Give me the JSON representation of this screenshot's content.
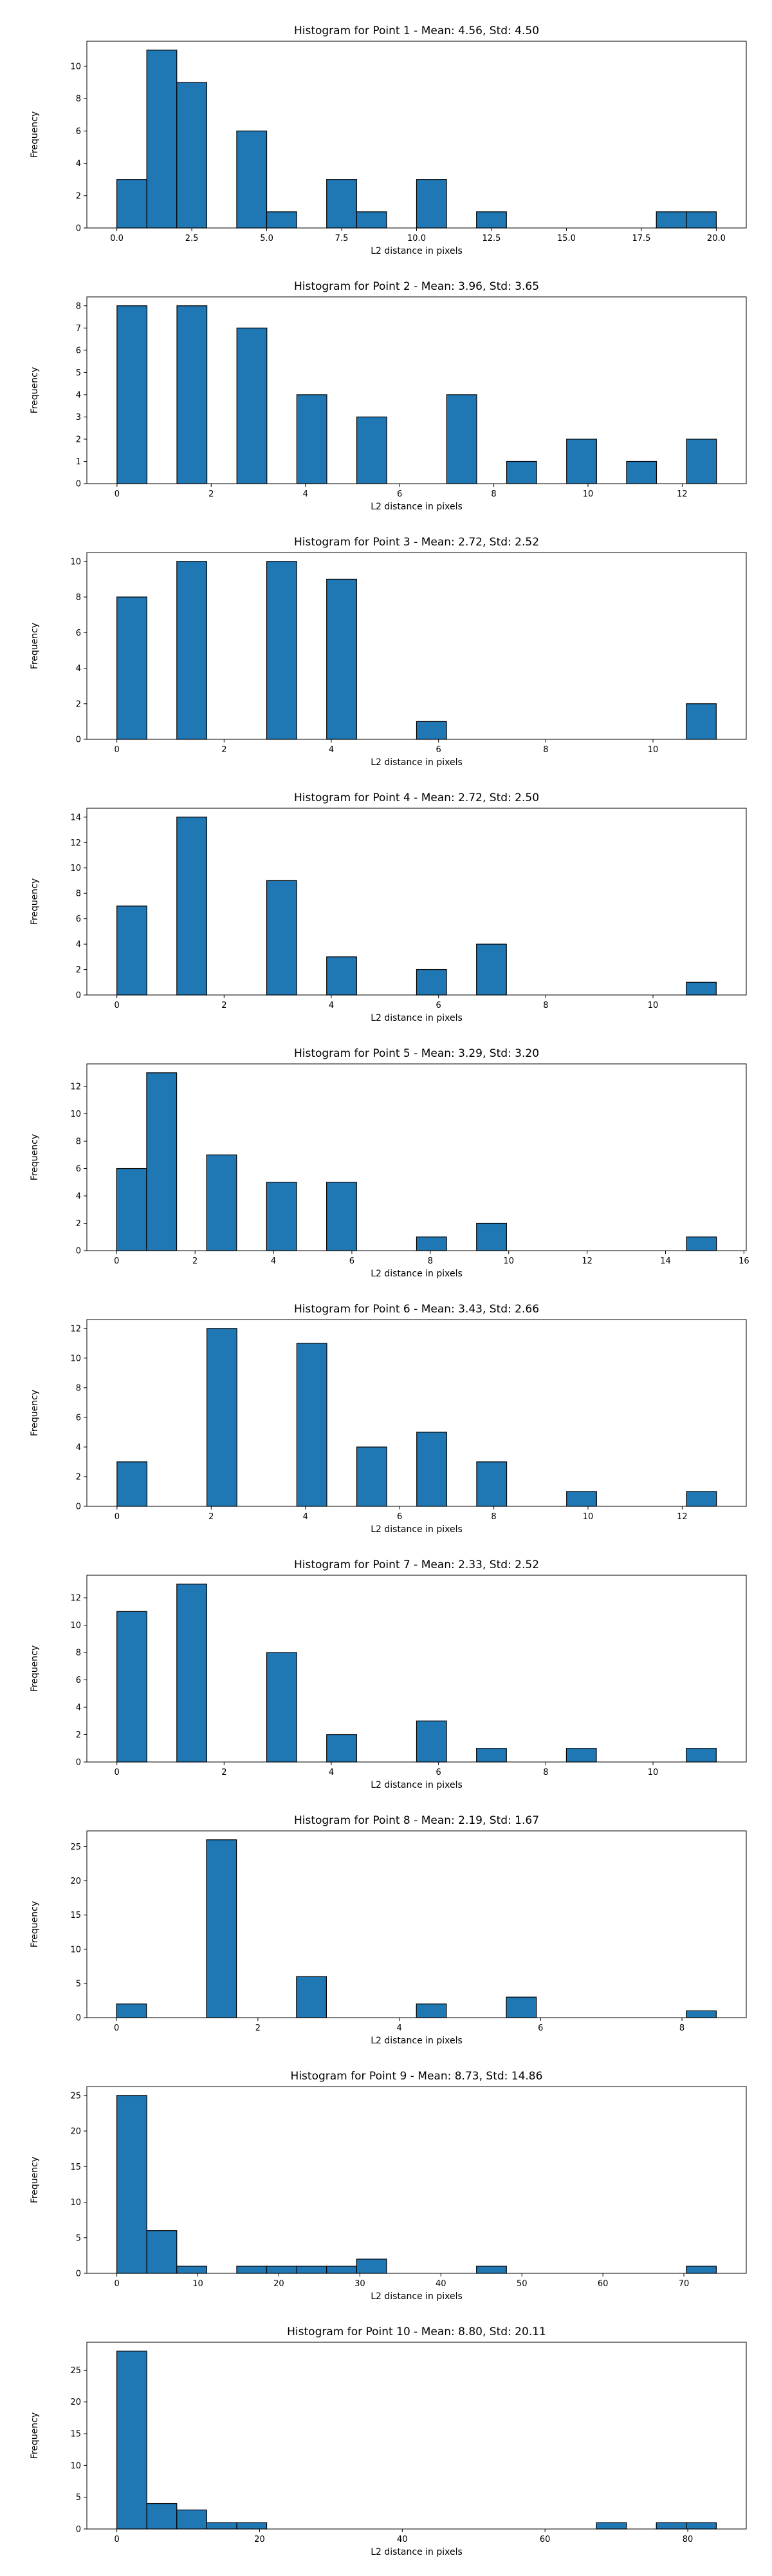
{
  "figure": {
    "background": "#ffffff",
    "bar_color": "#1f77b4",
    "edge_color": "#000000"
  },
  "chart_data": [
    {
      "type": "bar",
      "title": "Histogram for Point 1 - Mean: 4.56, Std: 4.50",
      "xlabel": "L2 distance in pixels",
      "ylabel": "Frequency",
      "xlim": [
        -1,
        21
      ],
      "ylim": [
        0,
        11.55
      ],
      "xticks": [
        0.0,
        2.5,
        5.0,
        7.5,
        10.0,
        12.5,
        15.0,
        17.5,
        20.0
      ],
      "xtick_labels": [
        "0.0",
        "2.5",
        "5.0",
        "7.5",
        "10.0",
        "12.5",
        "15.0",
        "17.5",
        "20.0"
      ],
      "yticks": [
        0,
        2,
        4,
        6,
        8,
        10
      ],
      "bin_edges": [
        0,
        1,
        2,
        3,
        4,
        5,
        6,
        7,
        8,
        9,
        10,
        11,
        12,
        13,
        14,
        15,
        16,
        17,
        18,
        19,
        20
      ],
      "counts": [
        3,
        11,
        9,
        0,
        6,
        1,
        0,
        3,
        1,
        0,
        3,
        0,
        1,
        0,
        0,
        0,
        0,
        0,
        1,
        1
      ],
      "grid": false
    },
    {
      "type": "bar",
      "title": "Histogram for Point 2 - Mean: 3.96, Std: 3.65",
      "xlabel": "L2 distance in pixels",
      "ylabel": "Frequency",
      "xlim": [
        -0.64,
        13.36
      ],
      "ylim": [
        0,
        8.4
      ],
      "xticks": [
        0,
        2,
        4,
        6,
        8,
        10,
        12
      ],
      "xtick_labels": [
        "0",
        "2",
        "4",
        "6",
        "8",
        "10",
        "12"
      ],
      "yticks": [
        0,
        1,
        2,
        3,
        4,
        5,
        6,
        7,
        8
      ],
      "bin_edges": [
        0,
        0.6364,
        1.2727,
        1.9091,
        2.5455,
        3.1818,
        3.8182,
        4.4545,
        5.0909,
        5.7273,
        6.3636,
        7.0,
        7.6364,
        8.2727,
        8.9091,
        9.5455,
        10.1818,
        10.8182,
        11.4545,
        12.0909,
        12.7273
      ],
      "counts": [
        8,
        0,
        8,
        0,
        7,
        0,
        4,
        0,
        3,
        0,
        0,
        4,
        0,
        1,
        0,
        2,
        0,
        1,
        0,
        2
      ],
      "grid": false
    },
    {
      "type": "bar",
      "title": "Histogram for Point 3 - Mean: 2.72, Std: 2.52",
      "xlabel": "L2 distance in pixels",
      "ylabel": "Frequency",
      "xlim": [
        -0.56,
        11.74
      ],
      "ylim": [
        0,
        10.5
      ],
      "xticks": [
        0,
        2,
        4,
        6,
        8,
        10
      ],
      "xtick_labels": [
        "0",
        "2",
        "4",
        "6",
        "8",
        "10"
      ],
      "yticks": [
        0,
        2,
        4,
        6,
        8,
        10
      ],
      "bin_edges": [
        0,
        0.559,
        1.118,
        1.677,
        2.236,
        2.795,
        3.354,
        3.913,
        4.472,
        5.031,
        5.59,
        6.149,
        6.708,
        7.267,
        7.826,
        8.385,
        8.944,
        9.503,
        10.062,
        10.621,
        11.18
      ],
      "counts": [
        8,
        0,
        10,
        0,
        0,
        10,
        0,
        9,
        0,
        0,
        1,
        0,
        0,
        0,
        0,
        0,
        0,
        0,
        0,
        2
      ],
      "grid": false
    },
    {
      "type": "bar",
      "title": "Histogram for Point 4 - Mean: 2.72, Std: 2.50",
      "xlabel": "L2 distance in pixels",
      "ylabel": "Frequency",
      "xlim": [
        -0.56,
        11.74
      ],
      "ylim": [
        0,
        14.7
      ],
      "xticks": [
        0,
        2,
        4,
        6,
        8,
        10
      ],
      "xtick_labels": [
        "0",
        "2",
        "4",
        "6",
        "8",
        "10"
      ],
      "yticks": [
        0,
        2,
        4,
        6,
        8,
        10,
        12,
        14
      ],
      "bin_edges": [
        0,
        0.559,
        1.118,
        1.677,
        2.236,
        2.795,
        3.354,
        3.913,
        4.472,
        5.031,
        5.59,
        6.149,
        6.708,
        7.267,
        7.826,
        8.385,
        8.944,
        9.503,
        10.062,
        10.621,
        11.18
      ],
      "counts": [
        7,
        0,
        14,
        0,
        0,
        9,
        0,
        3,
        0,
        0,
        2,
        0,
        4,
        0,
        0,
        0,
        0,
        0,
        0,
        1
      ],
      "grid": false
    },
    {
      "type": "bar",
      "title": "Histogram for Point 5 - Mean: 3.29, Std: 3.20",
      "xlabel": "L2 distance in pixels",
      "ylabel": "Frequency",
      "xlim": [
        -0.76,
        16.06
      ],
      "ylim": [
        0,
        13.65
      ],
      "xticks": [
        0,
        2,
        4,
        6,
        8,
        10,
        12,
        14,
        16
      ],
      "xtick_labels": [
        "0",
        "2",
        "4",
        "6",
        "8",
        "10",
        "12",
        "14",
        "16"
      ],
      "yticks": [
        0,
        2,
        4,
        6,
        8,
        10,
        12
      ],
      "bin_edges": [
        0,
        0.765,
        1.53,
        2.295,
        3.06,
        3.825,
        4.59,
        5.355,
        6.12,
        6.885,
        7.65,
        8.415,
        9.18,
        9.945,
        10.71,
        11.475,
        12.24,
        13.005,
        13.77,
        14.535,
        15.3
      ],
      "counts": [
        6,
        13,
        0,
        7,
        0,
        5,
        0,
        5,
        0,
        0,
        1,
        0,
        2,
        0,
        0,
        0,
        0,
        0,
        0,
        1
      ],
      "grid": false
    },
    {
      "type": "bar",
      "title": "Histogram for Point 6 - Mean: 3.43, Std: 2.66",
      "xlabel": "L2 distance in pixels",
      "ylabel": "Frequency",
      "xlim": [
        -0.64,
        13.36
      ],
      "ylim": [
        0,
        12.6
      ],
      "xticks": [
        0,
        2,
        4,
        6,
        8,
        10,
        12
      ],
      "xtick_labels": [
        "0",
        "2",
        "4",
        "6",
        "8",
        "10",
        "12"
      ],
      "yticks": [
        0,
        2,
        4,
        6,
        8,
        10,
        12
      ],
      "bin_edges": [
        0,
        0.6364,
        1.2727,
        1.9091,
        2.5455,
        3.1818,
        3.8182,
        4.4545,
        5.0909,
        5.7273,
        6.3636,
        7.0,
        7.6364,
        8.2727,
        8.9091,
        9.5455,
        10.1818,
        10.8182,
        11.4545,
        12.0909,
        12.7273
      ],
      "counts": [
        3,
        0,
        0,
        12,
        0,
        0,
        11,
        0,
        4,
        0,
        5,
        0,
        3,
        0,
        0,
        1,
        0,
        0,
        0,
        1
      ],
      "grid": false
    },
    {
      "type": "bar",
      "title": "Histogram for Point 7 - Mean: 2.33, Std: 2.52",
      "xlabel": "L2 distance in pixels",
      "ylabel": "Frequency",
      "xlim": [
        -0.56,
        11.74
      ],
      "ylim": [
        0,
        13.65
      ],
      "xticks": [
        0,
        2,
        4,
        6,
        8,
        10
      ],
      "xtick_labels": [
        "0",
        "2",
        "4",
        "6",
        "8",
        "10"
      ],
      "yticks": [
        0,
        2,
        4,
        6,
        8,
        10,
        12
      ],
      "bin_edges": [
        0,
        0.559,
        1.118,
        1.677,
        2.236,
        2.795,
        3.354,
        3.913,
        4.472,
        5.031,
        5.59,
        6.149,
        6.708,
        7.267,
        7.826,
        8.385,
        8.944,
        9.503,
        10.062,
        10.621,
        11.18
      ],
      "counts": [
        11,
        0,
        13,
        0,
        0,
        8,
        0,
        2,
        0,
        0,
        3,
        0,
        1,
        0,
        0,
        1,
        0,
        0,
        0,
        1
      ],
      "grid": false
    },
    {
      "type": "bar",
      "title": "Histogram for Point 8 - Mean: 2.19, Std: 1.67",
      "xlabel": "L2 distance in pixels",
      "ylabel": "Frequency",
      "xlim": [
        -0.42,
        8.91
      ],
      "ylim": [
        0,
        27.3
      ],
      "xticks": [
        0,
        2,
        4,
        6,
        8
      ],
      "xtick_labels": [
        "0",
        "2",
        "4",
        "6",
        "8"
      ],
      "yticks": [
        0,
        5,
        10,
        15,
        20,
        25
      ],
      "bin_edges": [
        0,
        0.4243,
        0.8485,
        1.2728,
        1.6971,
        2.1213,
        2.5456,
        2.9698,
        3.3941,
        3.8184,
        4.2426,
        4.6669,
        5.0912,
        5.5154,
        5.9397,
        6.364,
        6.7882,
        7.2125,
        7.6368,
        8.061,
        8.4853
      ],
      "counts": [
        2,
        0,
        0,
        26,
        0,
        0,
        6,
        0,
        0,
        0,
        2,
        0,
        0,
        3,
        0,
        0,
        0,
        0,
        0,
        1
      ],
      "grid": false
    },
    {
      "type": "bar",
      "title": "Histogram for Point 9 - Mean: 8.73, Std: 14.86",
      "xlabel": "L2 distance in pixels",
      "ylabel": "Frequency",
      "xlim": [
        -3.7,
        77.7
      ],
      "ylim": [
        0,
        26.25
      ],
      "xticks": [
        0,
        10,
        20,
        30,
        40,
        50,
        60,
        70
      ],
      "xtick_labels": [
        "0",
        "10",
        "20",
        "30",
        "40",
        "50",
        "60",
        "70"
      ],
      "yticks": [
        0,
        5,
        10,
        15,
        20,
        25
      ],
      "bin_edges": [
        0,
        3.7,
        7.4,
        11.1,
        14.8,
        18.5,
        22.2,
        25.9,
        29.6,
        33.3,
        37.0,
        40.7,
        44.4,
        48.1,
        51.8,
        55.5,
        59.2,
        62.9,
        66.6,
        70.3,
        74.0
      ],
      "counts": [
        25,
        6,
        1,
        0,
        1,
        1,
        1,
        1,
        2,
        0,
        0,
        0,
        1,
        0,
        0,
        0,
        0,
        0,
        0,
        1
      ],
      "grid": false
    },
    {
      "type": "bar",
      "title": "Histogram for Point 10 - Mean: 8.80, Std: 20.11",
      "xlabel": "L2 distance in pixels",
      "ylabel": "Frequency",
      "xlim": [
        -4.2,
        88.2
      ],
      "ylim": [
        0,
        29.4
      ],
      "xticks": [
        0,
        20,
        40,
        60,
        80
      ],
      "xtick_labels": [
        "0",
        "20",
        "40",
        "60",
        "80"
      ],
      "yticks": [
        0,
        5,
        10,
        15,
        20,
        25
      ],
      "bin_edges": [
        0,
        4.2,
        8.4,
        12.6,
        16.8,
        21.0,
        25.2,
        29.4,
        33.6,
        37.8,
        42.0,
        46.2,
        50.4,
        54.6,
        58.8,
        63.0,
        67.2,
        71.4,
        75.6,
        79.8,
        84.0
      ],
      "counts": [
        28,
        4,
        3,
        1,
        1,
        0,
        0,
        0,
        0,
        0,
        0,
        0,
        0,
        0,
        0,
        0,
        1,
        0,
        1,
        1
      ],
      "grid": false
    }
  ]
}
